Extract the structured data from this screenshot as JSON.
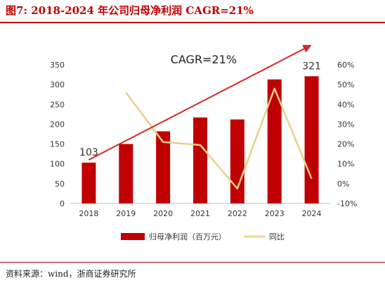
{
  "figure": {
    "title": "图7:   2018-2024 年公司归母净利润 CAGR=21%",
    "source": "资料来源：wind，浙商证券研究所"
  },
  "colors": {
    "bar": "#c00000",
    "yoy_line": "#e8cf8c",
    "arrow": "#d62828",
    "axis_text": "#333333",
    "title": "#c00000"
  },
  "chart_data": {
    "type": "bar",
    "categories": [
      "2018",
      "2019",
      "2020",
      "2021",
      "2022",
      "2023",
      "2024"
    ],
    "series": [
      {
        "name": "归母净利润（百万元）",
        "type": "bar",
        "axis": "left",
        "values": [
          103,
          150,
          182,
          217,
          212,
          313,
          321
        ]
      },
      {
        "name": "同比",
        "type": "line",
        "axis": "right",
        "values": [
          46,
          21,
          19.5,
          -2.5,
          48,
          2.5
        ],
        "x": [
          "2019",
          "2020",
          "2021",
          "2022",
          "2023",
          "2024"
        ]
      }
    ],
    "left_axis": {
      "min": 0,
      "max": 350,
      "ticks": [
        0,
        50,
        100,
        150,
        200,
        250,
        300,
        350
      ]
    },
    "right_axis": {
      "min": -10,
      "max": 60,
      "ticks": [
        "-10%",
        "0%",
        "10%",
        "20%",
        "30%",
        "40%",
        "50%",
        "60%"
      ]
    },
    "annotations": [
      {
        "text": "CAGR=21%"
      },
      {
        "text": "103",
        "category": "2018"
      },
      {
        "text": "321",
        "category": "2024"
      }
    ],
    "trend_arrow": {
      "from": {
        "category": "2018",
        "value": 110
      },
      "to": {
        "category": "2024",
        "value": 400
      }
    },
    "legend": {
      "position": "bottom"
    },
    "grid": false
  }
}
